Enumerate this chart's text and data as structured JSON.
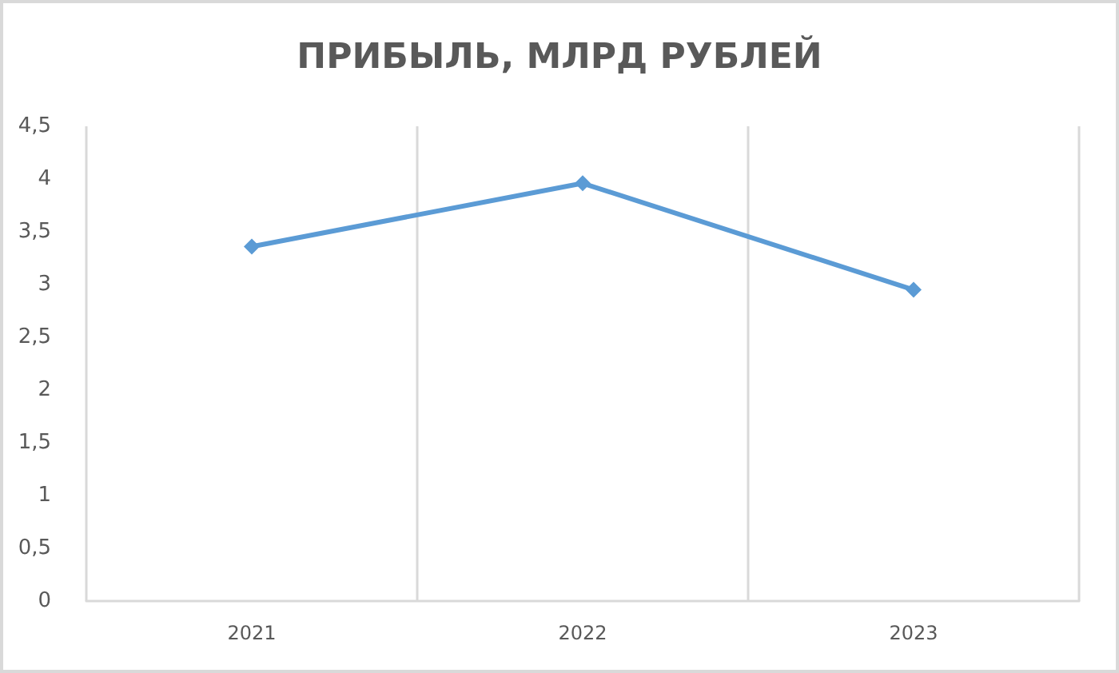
{
  "chart_data": {
    "type": "line",
    "title": "ПРИБЫЛЬ, МЛРД РУБЛЕЙ",
    "categories": [
      "2021",
      "2022",
      "2023"
    ],
    "series": [
      {
        "color": "#5b9bd5",
        "values": [
          3.36,
          3.96,
          2.95
        ]
      }
    ],
    "ylim": [
      0,
      4.5
    ],
    "yticks": [
      0,
      {
        "value": 0.5,
        "label": "0,5"
      },
      1,
      {
        "value": 1.5,
        "label": "1,5"
      },
      2,
      {
        "value": 2.5,
        "label": "2,5"
      },
      3,
      {
        "value": 3.5,
        "label": "3,5"
      },
      4,
      {
        "value": 4.5,
        "label": "4,5"
      }
    ],
    "grid": "x",
    "marker": "diamond",
    "line_style": "solid"
  }
}
